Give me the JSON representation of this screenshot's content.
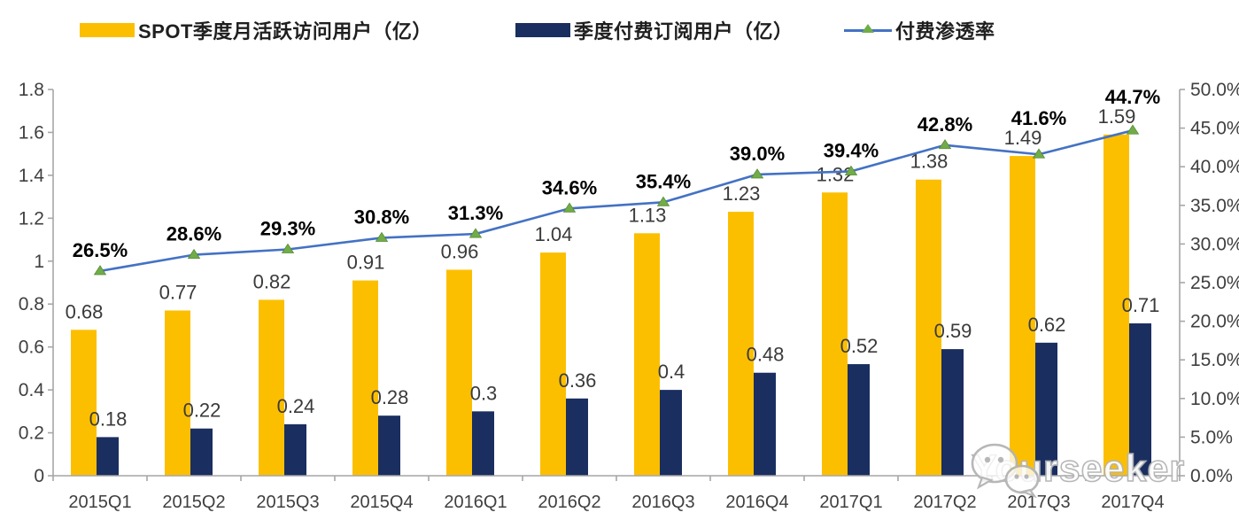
{
  "legend": [
    {
      "label": "SPOT季度月活跃访问用户（亿）",
      "swatch": "yellow-bar-swatch"
    },
    {
      "label": "季度付费订阅用户（亿）",
      "swatch": "navy-bar-swatch"
    },
    {
      "label": "付费渗透率",
      "swatch": "line-with-triangle-marker-swatch"
    }
  ],
  "watermark": {
    "text": "Yourseeker",
    "icon": "wechat-icon"
  },
  "colors": {
    "mau_bar": "#FCBF00",
    "subs_bar": "#1A2E60",
    "line": "#4472C4",
    "marker": "#70AD47",
    "axis": "#A6A6A6",
    "value_label": "#3A3A3A",
    "pct_label": "#000000",
    "tick_label": "#3F3F3F"
  },
  "chart_data": {
    "type": "bar",
    "subtype": "grouped-bar-with-line-combo",
    "title": "",
    "legend_position": "top",
    "grid": false,
    "categories": [
      "2015Q1",
      "2015Q2",
      "2015Q3",
      "2015Q4",
      "2016Q1",
      "2016Q2",
      "2016Q3",
      "2016Q4",
      "2017Q1",
      "2017Q2",
      "2017Q3",
      "2017Q4"
    ],
    "series": [
      {
        "name": "SPOT季度月活跃访问用户（亿）",
        "type": "bar",
        "axis": "left",
        "color": "#FCBF00",
        "values": [
          0.68,
          0.77,
          0.82,
          0.91,
          0.96,
          1.04,
          1.13,
          1.23,
          1.32,
          1.38,
          1.49,
          1.59
        ],
        "labels": [
          "0.68",
          "0.77",
          "0.82",
          "0.91",
          "0.96",
          "1.04",
          "1.13",
          "1.23",
          "1.32",
          "1.38",
          "1.49",
          "1.59"
        ]
      },
      {
        "name": "季度付费订阅用户（亿）",
        "type": "bar",
        "axis": "left",
        "color": "#1A2E60",
        "values": [
          0.18,
          0.22,
          0.24,
          0.28,
          0.3,
          0.36,
          0.4,
          0.48,
          0.52,
          0.59,
          0.62,
          0.71
        ],
        "labels": [
          "0.18",
          "0.22",
          "0.24",
          "0.28",
          "0.3",
          "0.36",
          "0.4",
          "0.48",
          "0.52",
          "0.59",
          "0.62",
          "0.71"
        ]
      },
      {
        "name": "付费渗透率",
        "type": "line",
        "axis": "right",
        "unit": "%",
        "color": "#4472C4",
        "marker": "green-triangle",
        "values": [
          26.5,
          28.6,
          29.3,
          30.8,
          31.3,
          34.6,
          35.4,
          39.0,
          39.4,
          42.8,
          41.6,
          44.7
        ],
        "labels": [
          "26.5%",
          "28.6%",
          "29.3%",
          "30.8%",
          "31.3%",
          "34.6%",
          "35.4%",
          "39.0%",
          "39.4%",
          "42.8%",
          "41.6%",
          "44.7%"
        ]
      }
    ],
    "left_axis": {
      "min": 0,
      "max": 1.8,
      "step": 0.2,
      "tick_labels": [
        "0",
        "0.2",
        "0.4",
        "0.6",
        "0.8",
        "1",
        "1.2",
        "1.4",
        "1.6",
        "1.8"
      ]
    },
    "right_axis": {
      "min": 0,
      "max": 50,
      "step": 5,
      "tick_labels": [
        "0.0%",
        "5.0%",
        "10.0%",
        "15.0%",
        "20.0%",
        "25.0%",
        "30.0%",
        "35.0%",
        "40.0%",
        "45.0%",
        "50.0%"
      ]
    }
  }
}
